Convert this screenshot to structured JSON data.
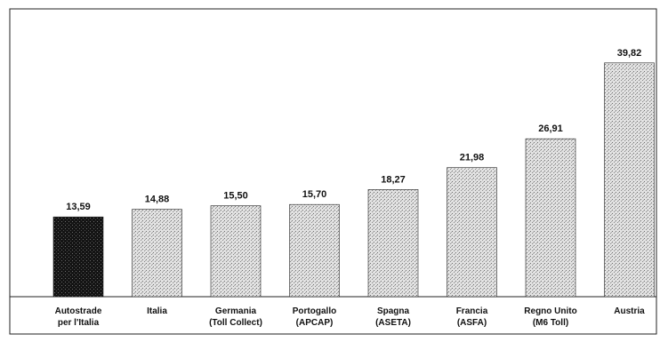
{
  "chart_data": {
    "type": "bar",
    "title": "",
    "xlabel": "",
    "ylabel": "",
    "categories": [
      [
        "Autostrade",
        "per l'Italia"
      ],
      [
        "Italia"
      ],
      [
        "Germania",
        "(Toll Collect)"
      ],
      [
        "Portogallo",
        "(APCAP)"
      ],
      [
        "Spagna",
        "(ASETA)"
      ],
      [
        "Francia",
        "(ASFA)"
      ],
      [
        "Regno Unito",
        "(M6 Toll)"
      ],
      [
        "Austria"
      ]
    ],
    "values": [
      13.59,
      14.88,
      15.5,
      15.7,
      18.27,
      21.98,
      26.91,
      39.82
    ],
    "value_labels": [
      "13,59",
      "14,88",
      "15,50",
      "15,70",
      "18,27",
      "21,98",
      "26,91",
      "39,82"
    ],
    "highlight_index": 0,
    "colors": {
      "highlight": "#151515",
      "bar": "#c9c9c9",
      "frame": "#222222"
    },
    "grid": false,
    "legend": "none",
    "ylim": [
      0,
      46
    ]
  }
}
